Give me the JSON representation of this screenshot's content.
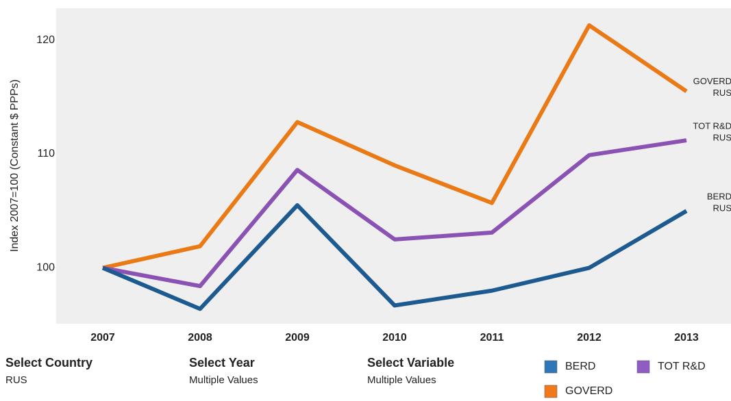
{
  "chart_data": {
    "type": "line",
    "y_label": "Index 2007=100 (Constant $ PPPs)",
    "categories": [
      "2007",
      "2008",
      "2009",
      "2010",
      "2011",
      "2012",
      "2013"
    ],
    "ylim": [
      95.1,
      122.8
    ],
    "yticks": [
      100,
      110,
      120
    ],
    "series": [
      {
        "name": "GOVERD",
        "color": "#ea7a16",
        "legend_color": "#f07a1a",
        "end_label": [
          "GOVERD",
          "RUS"
        ],
        "values": [
          100,
          101.9,
          112.8,
          109.0,
          105.7,
          121.3,
          115.5
        ]
      },
      {
        "name": "TOT R&D",
        "color": "#8a52b3",
        "legend_color": "#8e5cc2",
        "end_label": [
          "TOT R&D",
          "RUS"
        ],
        "values": [
          100,
          98.4,
          108.6,
          102.5,
          103.1,
          109.9,
          111.2
        ]
      },
      {
        "name": "BERD",
        "color": "#1d5a90",
        "legend_color": "#2f77b8",
        "end_label": [
          "BERD",
          "RUS"
        ],
        "values": [
          100,
          96.4,
          105.5,
          96.7,
          98.0,
          100.0,
          105.0
        ]
      }
    ],
    "filters": [
      {
        "title": "Select Country",
        "value": "RUS"
      },
      {
        "title": "Select Year",
        "value": "Multiple Values"
      },
      {
        "title": "Select Variable",
        "value": "Multiple Values"
      }
    ]
  }
}
